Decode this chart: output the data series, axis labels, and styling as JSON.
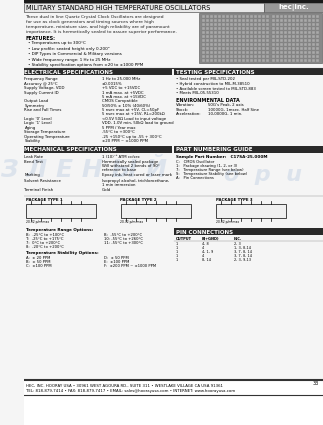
{
  "title": "MILITARY STANDARD HIGH TEMPERATURE OSCILLATORS",
  "page_num": "33",
  "intro_text": "These dual in line Quartz Crystal Clock Oscillators are designed\nfor use as clock generators and timing sources where high\ntemperature, miniature size, and high reliability are of paramount\nimportance. It is hermetically sealed to assure superior performance.",
  "features_title": "FEATURES:",
  "features": [
    "Temperatures up to 300°C",
    "Low profile: seated height only 0.200\"",
    "DIP Types in Commercial & Military versions",
    "Wide frequency range: 1 Hz to 25 MHz",
    "Stability specification options from ±20 to ±1000 PPM"
  ],
  "elec_spec_title": "ELECTRICAL SPECIFICATIONS",
  "elec_specs": [
    [
      "Frequency Range",
      "1 Hz to 25.000 MHz"
    ],
    [
      "Accuracy @ 25°C",
      "±0.0015%"
    ],
    [
      "Supply Voltage, VDD",
      "+5 VDC to +15VDC"
    ],
    [
      "Supply Current ID",
      "1 mA max. at +5VDC",
      "5 mA max. at +15VDC"
    ],
    [
      "Output Load",
      "CMOS Compatible"
    ],
    [
      "Symmetry",
      "50/50% ± 10% (40/60%)"
    ],
    [
      "Rise and Fall Times",
      "5 nsec max at +5V, CL=50pF",
      "5 nsec max at +15V, RL=200kΩ"
    ],
    [
      "Logic '0' Level",
      "<0.5V 50Ω Load to input voltage"
    ],
    [
      "Logic '1' Level",
      "VDD- 1.0V min, 50kΩ load to ground"
    ],
    [
      "Aging",
      "5 PPM / Year max"
    ],
    [
      "Storage Temperature",
      "-55°C to +300°C"
    ],
    [
      "Operating Temperature",
      "-25 +150°C up to -55 + 300°C"
    ],
    [
      "Stability",
      "±20 PPM ~ ±1000 PPM"
    ]
  ],
  "mech_spec_title": "MECHANICAL SPECIFICATIONS",
  "mech_specs": [
    [
      "Leak Rate",
      "1 (10)⁻⁸ ATM cc/sec"
    ],
    [
      "Bend Test",
      "Hermetically sealed package",
      "Will withstand 2 bends of 90°",
      "reference to base"
    ],
    [
      "Marking",
      "Epoxy ink, heat cured or laser mark"
    ],
    [
      "Solvent Resistance",
      "Isopropyl alcohol, trichloroethane,",
      "1 min immersion"
    ],
    [
      "Terminal Finish",
      "Gold"
    ]
  ],
  "pkg_types": [
    "PACKAGE TYPE 1",
    "PACKAGE TYPE 2",
    "PACKAGE TYPE 3"
  ],
  "test_spec_title": "TESTING SPECIFICATIONS",
  "test_specs": [
    "Seal tested per MIL-STD-202",
    "Hybrid construction to MIL-M-38510",
    "Available screen tested to MIL-STD-883",
    "Meets MIL-05-55310"
  ],
  "env_spec_title": "ENVIRONMENTAL DATA",
  "env_specs": [
    [
      "Vibration:",
      "50G's Peak, 2 axis"
    ],
    [
      "Shock:",
      "10000G, 1msec. Half Sine"
    ],
    [
      "Acceleration:",
      "10,0000G, 1 min."
    ]
  ],
  "part_title": "PART NUMBERING GUIDE",
  "part_sample": "Sample Part Number:   C17SA-25.000M",
  "part_lines": [
    "C:   CMOS Oscillator",
    "1:   Package drawing (1, 2, or 3)",
    "7:   Temperature Range (see below)",
    "S:   Temperature Stability (see below)",
    "A:   Pin Connections"
  ],
  "temp_range_title": "Temperature Range Options:",
  "temp_range": [
    [
      "B:  -25°C to +100°C",
      "B:  -55°C to +200°C"
    ],
    [
      "T:  -25°C to +175°C",
      "10: -55°C to +260°C"
    ],
    [
      "7:  0°C to +200°C",
      "11: -55°C to +300°C"
    ],
    [
      "8:  -20°C to +200°C",
      ""
    ]
  ],
  "temp_stab_title": "Temperature Stability Options:",
  "temp_stab": [
    [
      "A:  ± 20 PPM",
      "D:  ± 50 PPM"
    ],
    [
      "B:  ± 50 PPM",
      "E:  ±100 PPM"
    ],
    [
      "C:  ±100 PPM",
      "F:  ±200 PPM ~ ±1000 PPM"
    ]
  ],
  "pin_title": "PIN CONNECTIONS",
  "pin_headers": [
    "OUTPUT",
    "B(+GND)",
    "N.C.",
    ""
  ],
  "pin_rows": [
    [
      "1",
      "4, 8",
      "2, 3",
      ""
    ],
    [
      "1",
      "4",
      "1, 3, 8-14",
      ""
    ]
  ],
  "footer_line1": "HEC, INC. HOORAY USA • 30961 WEST AGOURA RD., SUITE 311 • WESTLAKE VILLAGE CA USA 91361",
  "footer_line2": "TEL: 818-879-7414 • FAX: 818-879-7417 • EMAIL: sales@hoorayusa.com • INTERNET: www.hoorayusa.com",
  "bg_color": "#f5f5f5",
  "header_bg": "#1a1a1a",
  "section_bg": "#2a2a2a",
  "header_text_color": "#ffffff",
  "logo_bg": "#cccccc",
  "watermark_color": "#b0c4de"
}
